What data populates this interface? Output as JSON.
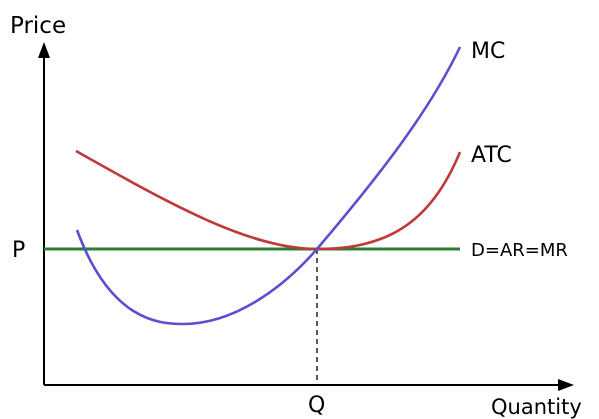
{
  "axes": {
    "y_label": "Price",
    "x_label": "Quantity",
    "price_marker": "P",
    "quantity_marker": "Q"
  },
  "curves": {
    "mc": {
      "label": "MC",
      "color": "#5b4fcf"
    },
    "atc": {
      "label": "ATC",
      "color": "#c0393b"
    },
    "demand": {
      "label": "D=AR=MR",
      "color": "#2e7d32"
    }
  },
  "colors": {
    "axis": "#000000",
    "guide": "#000000"
  }
}
